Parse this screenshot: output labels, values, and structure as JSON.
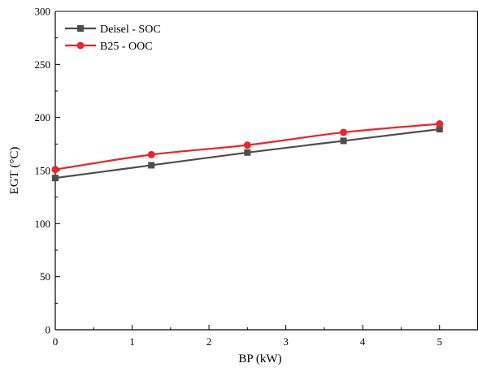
{
  "chart_data": {
    "type": "line",
    "x": [
      0,
      1.25,
      2.5,
      3.75,
      5
    ],
    "series": [
      {
        "name": "Deisel - SOC",
        "values": [
          143,
          155,
          167,
          178,
          189
        ],
        "color": "#4d4d4d",
        "marker": "square"
      },
      {
        "name": "B25 - OOC",
        "values": [
          151,
          165,
          174,
          186,
          194
        ],
        "color": "#e8262b",
        "marker": "circle"
      }
    ],
    "xlabel": "BP (kW)",
    "ylabel": "EGT (°C)",
    "xlim": [
      0,
      5.5
    ],
    "ylim": [
      0,
      300
    ],
    "xticks": [
      0,
      1,
      2,
      3,
      4,
      5
    ],
    "yticks": [
      0,
      50,
      100,
      150,
      200,
      250,
      300
    ],
    "grid": false,
    "legend_position": "top-left"
  }
}
